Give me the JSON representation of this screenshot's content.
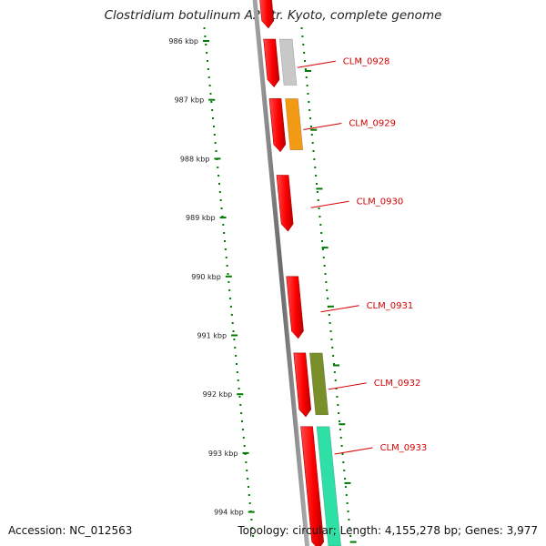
{
  "title": "Clostridium botulinum A2 str. Kyoto, complete genome",
  "accession_text": "Accession: NC_012563",
  "topology_text": "Topology: circular; Length: 4,155,278 bp; Genes: 3,977",
  "scale_ticks": [
    {
      "label": "986 kbp",
      "kbp": 986
    },
    {
      "label": "987 kbp",
      "kbp": 987
    },
    {
      "label": "988 kbp",
      "kbp": 988
    },
    {
      "label": "989 kbp",
      "kbp": 989
    },
    {
      "label": "990 kbp",
      "kbp": 990
    },
    {
      "label": "991 kbp",
      "kbp": 991
    },
    {
      "label": "992 kbp",
      "kbp": 992
    },
    {
      "label": "993 kbp",
      "kbp": 993
    },
    {
      "label": "994 kbp",
      "kbp": 994
    }
  ],
  "genes": [
    {
      "label": "",
      "start_kbp": 985.45,
      "end_kbp": 985.75,
      "strand": "+",
      "product_color": ""
    },
    {
      "label": "CLM_0928",
      "start_kbp": 985.97,
      "end_kbp": 986.75,
      "strand": "+",
      "product_color": "#c8c8c8"
    },
    {
      "label": "CLM_0929",
      "start_kbp": 986.98,
      "end_kbp": 987.85,
      "strand": "+",
      "product_color": "#f39a14"
    },
    {
      "label": "CLM_0930",
      "start_kbp": 988.28,
      "end_kbp": 989.2,
      "strand": "+",
      "product_color": ""
    },
    {
      "label": "CLM_0931",
      "start_kbp": 990.0,
      "end_kbp": 991.02,
      "strand": "+",
      "product_color": ""
    },
    {
      "label": "CLM_0932",
      "start_kbp": 991.3,
      "end_kbp": 992.35,
      "strand": "+",
      "product_color": "#7a8f2a"
    },
    {
      "label": "CLM_0933",
      "start_kbp": 992.55,
      "end_kbp": 994.6,
      "strand": "+",
      "product_color": "#2ee0a6"
    }
  ],
  "colors": {
    "cds": "#ff0000",
    "backbone": "#808080",
    "tick_mark": "#007a00",
    "label_text": "#d40000"
  }
}
